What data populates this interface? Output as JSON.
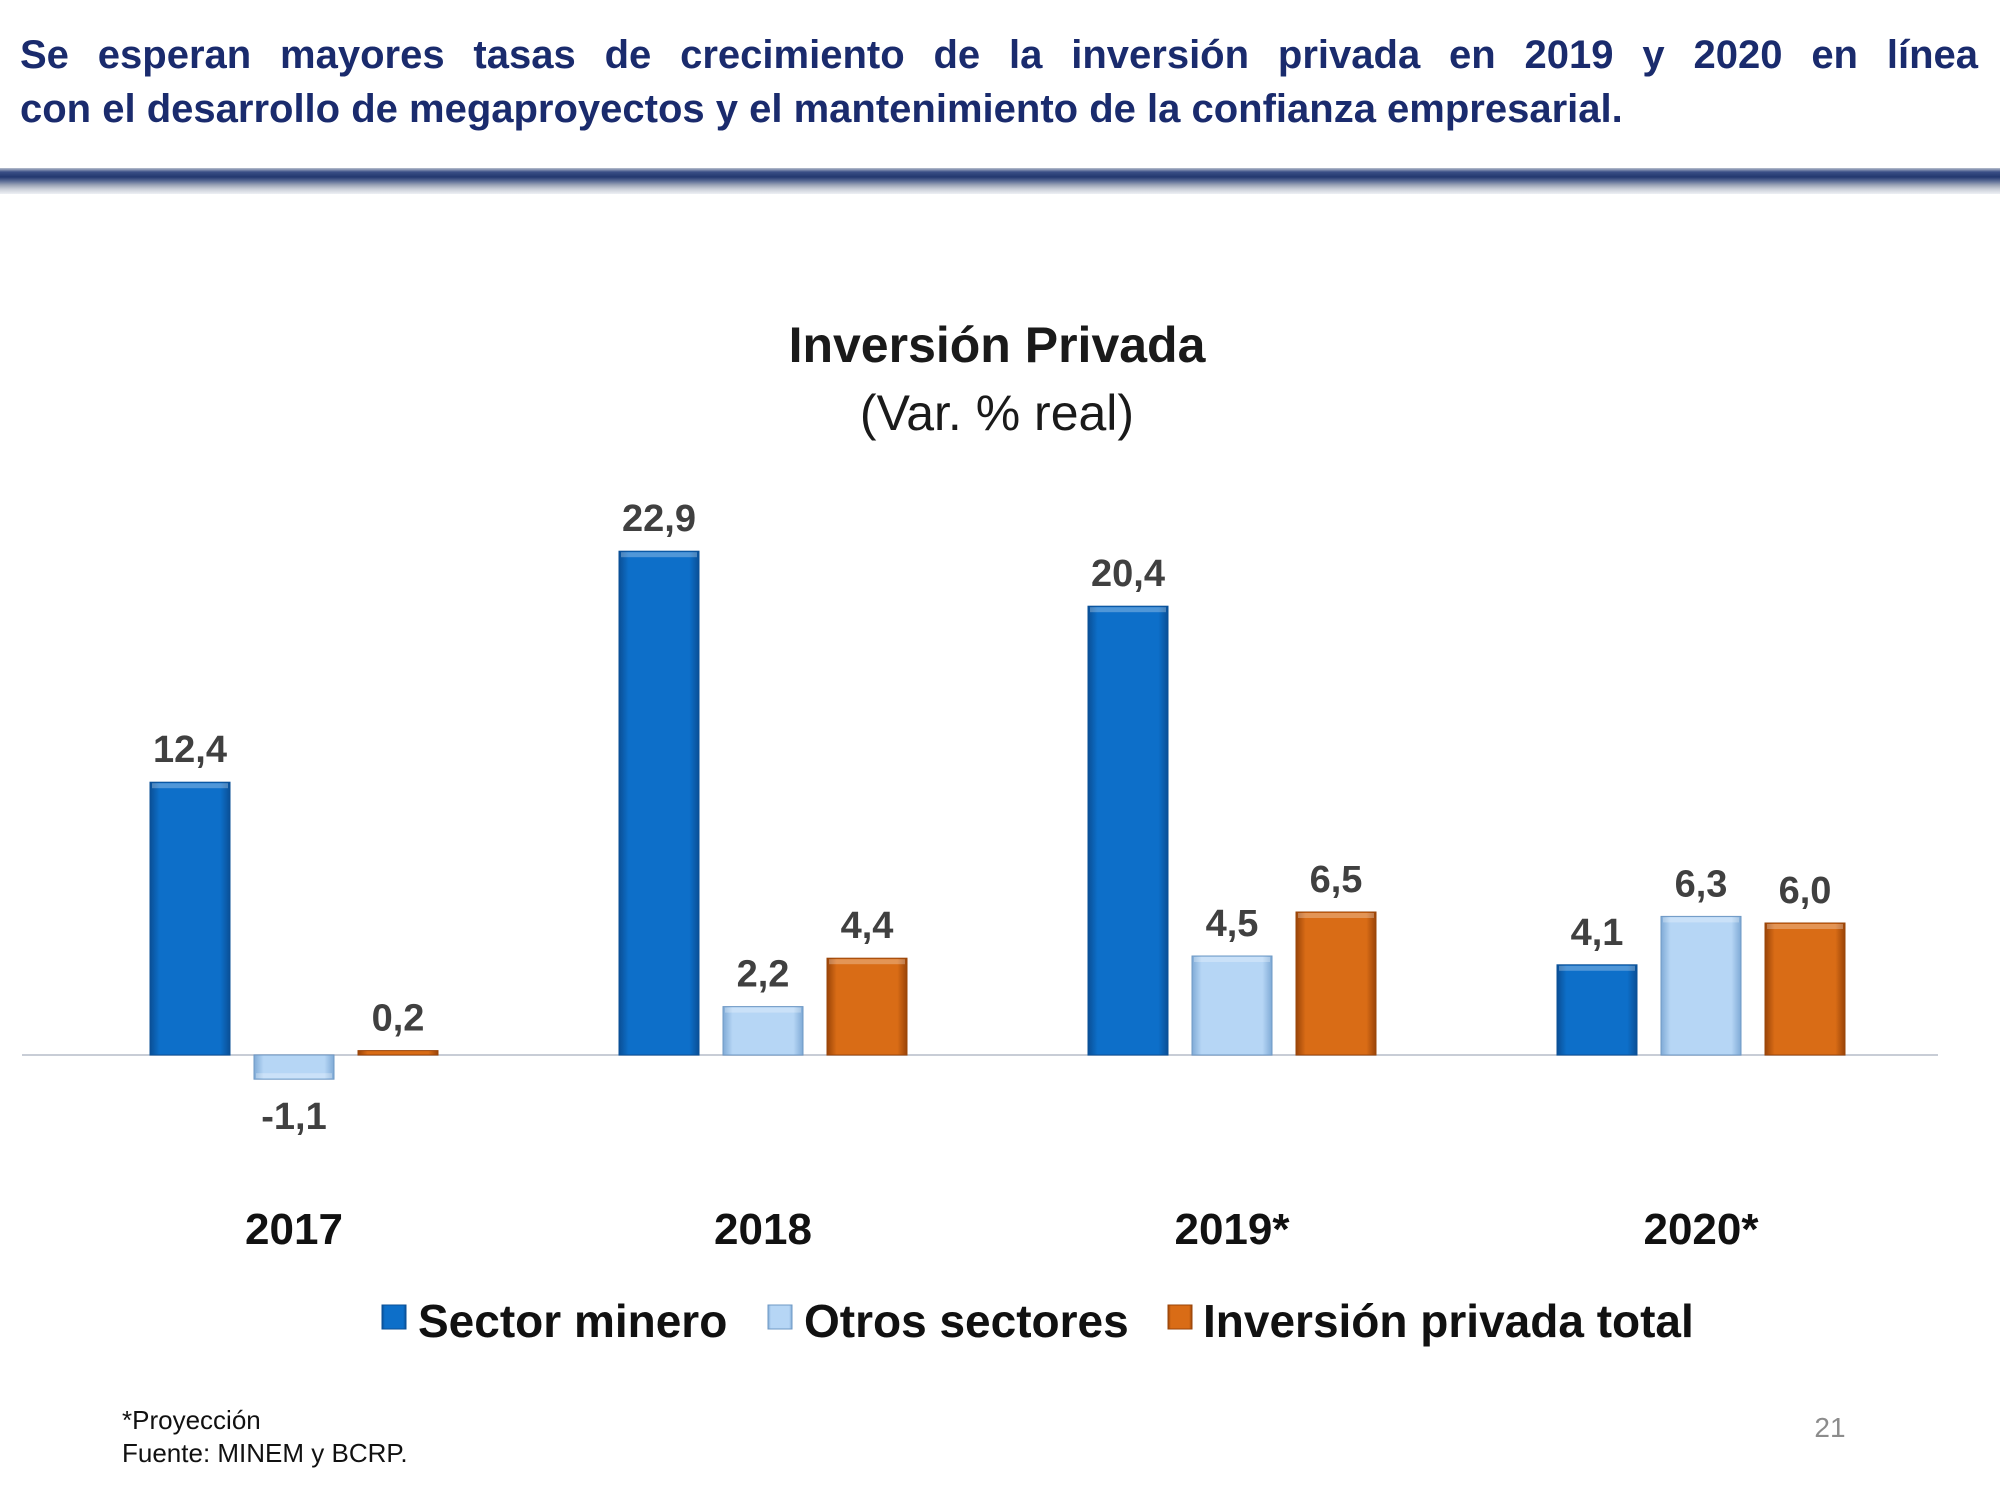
{
  "headline": {
    "line1": "Se esperan mayores tasas de crecimiento de la inversión privada en 2019 y 2020 en línea",
    "line2": "con el desarrollo de megaproyectos y el mantenimiento de la confianza empresarial."
  },
  "colors": {
    "headline": "#1a2b6d",
    "sector_minero": "#0a6cc4",
    "otros_sectores": "#a9cdf2",
    "inversion_total": "#d86a14"
  },
  "chart_data": {
    "type": "bar",
    "title": "Inversión Privada",
    "subtitle": "(Var. % real)",
    "categories": [
      "2017",
      "2018",
      "2019*",
      "2020*"
    ],
    "series": [
      {
        "name": "Sector minero",
        "color": "#0a6cc4",
        "values": [
          12.4,
          22.9,
          20.4,
          4.1
        ],
        "labels": [
          "12,4",
          "22,9",
          "20,4",
          "4,1"
        ]
      },
      {
        "name": "Otros sectores",
        "color": "#a9cdf2",
        "values": [
          -1.1,
          2.2,
          4.5,
          6.3
        ],
        "labels": [
          "-1,1",
          "2,2",
          "4,5",
          "6,3"
        ]
      },
      {
        "name": "Inversión privada total",
        "color": "#d86a14",
        "values": [
          0.2,
          4.4,
          6.5,
          6.0
        ],
        "labels": [
          "0,2",
          "4,4",
          "6,5",
          "6,0"
        ]
      }
    ],
    "xlabel": "",
    "ylabel": "",
    "ylim": [
      -3,
      25
    ],
    "grid": false,
    "legend": "bottom"
  },
  "footnote": {
    "projection": "*Proyección",
    "source": "Fuente: MINEM y BCRP."
  },
  "page_number": "21"
}
